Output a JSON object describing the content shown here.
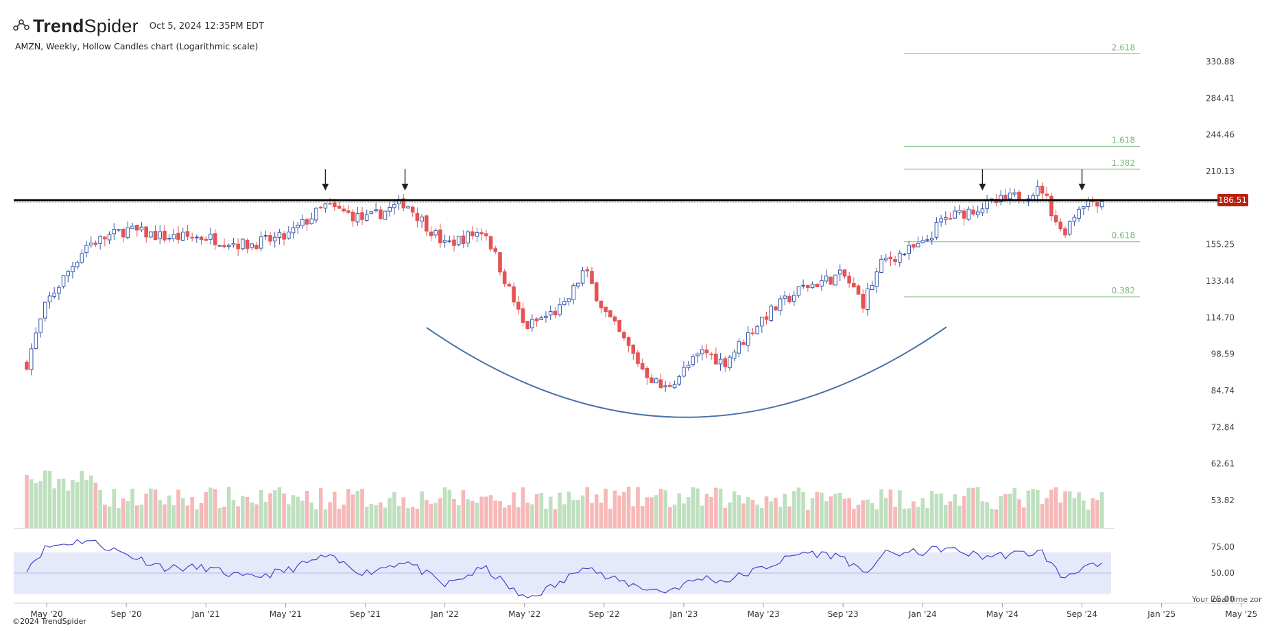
{
  "header": {
    "brand_bold": "Trend",
    "brand_light": "Spider",
    "timestamp": "Oct 5, 2024 12:35PM EDT",
    "subtitle": "AMZN, Weekly, Hollow Candles chart (Logarithmic scale)",
    "copyright": "©2024 TrendSpider",
    "local_time_note": "Your local time zone"
  },
  "colors": {
    "up": "#3355aa",
    "down": "#e55353",
    "vol_up": "#bfe0bf",
    "vol_down": "#f6b8b8",
    "resistance": "#000000",
    "cup": "#4a72a8",
    "fib": "#7cb87c",
    "rsi_line": "#4444cc",
    "rsi_band": "#e6e9fa",
    "price_badge": "#b8210f"
  },
  "chart_data": {
    "type": "candlestick",
    "symbol": "AMZN",
    "interval": "Weekly",
    "scale": "log",
    "current_price_label": "186.51",
    "resistance_level": 186.51,
    "y_ticks": [
      "330.88",
      "284.41",
      "244.46",
      "210.13",
      "155.25",
      "133.44",
      "114.70",
      "98.59",
      "84.74",
      "72.84",
      "62.61",
      "53.82"
    ],
    "x_ticks": [
      "May '20",
      "Sep '20",
      "Jan '21",
      "May '21",
      "Sep '21",
      "Jan '22",
      "May '22",
      "Sep '22",
      "Jan '23",
      "May '23",
      "Sep '23",
      "Jan '24",
      "May '24",
      "Sep '24",
      "Jan '25",
      "May '25"
    ],
    "fib_levels": [
      {
        "label": "2.618",
        "value": 342
      },
      {
        "label": "1.618",
        "value": 233
      },
      {
        "label": "1.382",
        "value": 212
      },
      {
        "label": "0.618",
        "value": 157
      },
      {
        "label": "0.382",
        "value": 125
      }
    ],
    "arrow_marks": [
      "Jul '21",
      "Nov '21",
      "Apr '24",
      "Sep '24"
    ],
    "price_anchors": [
      {
        "date": "Apr '20",
        "close": 95
      },
      {
        "date": "May '20",
        "close": 122
      },
      {
        "date": "Jul '20",
        "close": 155
      },
      {
        "date": "Sep '20",
        "close": 165
      },
      {
        "date": "Nov '20",
        "close": 160
      },
      {
        "date": "Jan '21",
        "close": 160
      },
      {
        "date": "Mar '21",
        "close": 155
      },
      {
        "date": "May '21",
        "close": 160
      },
      {
        "date": "Jul '21",
        "close": 182
      },
      {
        "date": "Sep '21",
        "close": 172
      },
      {
        "date": "Nov '21",
        "close": 185
      },
      {
        "date": "Jan '22",
        "close": 155
      },
      {
        "date": "Mar '22",
        "close": 165
      },
      {
        "date": "May '22",
        "close": 110
      },
      {
        "date": "Jul '22",
        "close": 120
      },
      {
        "date": "Aug '22",
        "close": 140
      },
      {
        "date": "Sep '22",
        "close": 118
      },
      {
        "date": "Nov '22",
        "close": 92
      },
      {
        "date": "Dec '22",
        "close": 85
      },
      {
        "date": "Feb '23",
        "close": 100
      },
      {
        "date": "Mar '23",
        "close": 95
      },
      {
        "date": "May '23",
        "close": 115
      },
      {
        "date": "Jul '23",
        "close": 130
      },
      {
        "date": "Sep '23",
        "close": 137
      },
      {
        "date": "Oct '23",
        "close": 122
      },
      {
        "date": "Nov '23",
        "close": 145
      },
      {
        "date": "Jan '24",
        "close": 155
      },
      {
        "date": "Feb '24",
        "close": 172
      },
      {
        "date": "Apr '24",
        "close": 182
      },
      {
        "date": "Jul '24",
        "close": 195
      },
      {
        "date": "Aug '24",
        "close": 162
      },
      {
        "date": "Sep '24",
        "close": 185
      },
      {
        "date": "Oct '24",
        "close": 186.51
      }
    ],
    "rsi": {
      "ticks": [
        "75.00",
        "50.00",
        "25.00"
      ],
      "band": [
        30,
        70
      ],
      "anchors": [
        {
          "date": "Apr '20",
          "value": 55
        },
        {
          "date": "May '20",
          "value": 75
        },
        {
          "date": "Jul '20",
          "value": 82
        },
        {
          "date": "Sep '20",
          "value": 68
        },
        {
          "date": "Nov '20",
          "value": 55
        },
        {
          "date": "Jan '21",
          "value": 55
        },
        {
          "date": "Mar '21",
          "value": 45
        },
        {
          "date": "May '21",
          "value": 52
        },
        {
          "date": "Jul '21",
          "value": 66
        },
        {
          "date": "Sep '21",
          "value": 50
        },
        {
          "date": "Nov '21",
          "value": 62
        },
        {
          "date": "Jan '22",
          "value": 38
        },
        {
          "date": "Mar '22",
          "value": 55
        },
        {
          "date": "May '22",
          "value": 25
        },
        {
          "date": "Jul '22",
          "value": 42
        },
        {
          "date": "Aug '22",
          "value": 60
        },
        {
          "date": "Sep '22",
          "value": 46
        },
        {
          "date": "Nov '22",
          "value": 36
        },
        {
          "date": "Dec '22",
          "value": 32
        },
        {
          "date": "Feb '23",
          "value": 46
        },
        {
          "date": "Mar '23",
          "value": 42
        },
        {
          "date": "May '23",
          "value": 55
        },
        {
          "date": "Jul '23",
          "value": 70
        },
        {
          "date": "Sep '23",
          "value": 66
        },
        {
          "date": "Oct '23",
          "value": 48
        },
        {
          "date": "Nov '23",
          "value": 68
        },
        {
          "date": "Jan '24",
          "value": 70
        },
        {
          "date": "Feb '24",
          "value": 74
        },
        {
          "date": "Apr '24",
          "value": 66
        },
        {
          "date": "Jul '24",
          "value": 70
        },
        {
          "date": "Aug '24",
          "value": 45
        },
        {
          "date": "Sep '24",
          "value": 56
        },
        {
          "date": "Oct '24",
          "value": 56
        }
      ]
    }
  }
}
